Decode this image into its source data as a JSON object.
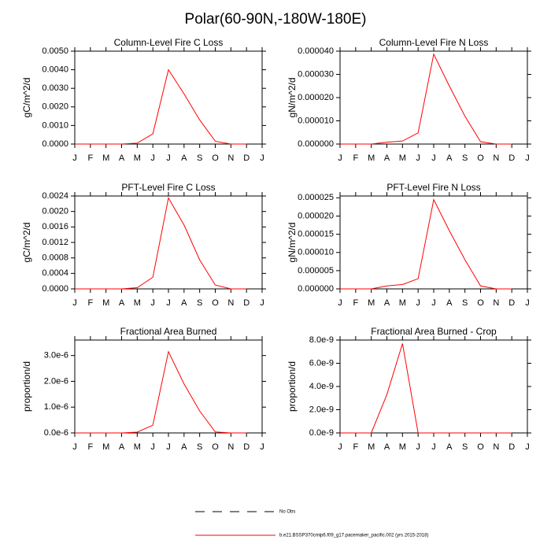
{
  "title": "Polar(60-90N,-180W-180E)",
  "legend": [
    {
      "name": "No Obs",
      "color": "#000000",
      "dash": "12 10"
    },
    {
      "name": "b.e21.BSSP370cmip6.f09_g17.pacemaker_pacific.002 (yrs 2015-2018)",
      "color": "#ff0000",
      "dash": "none"
    }
  ],
  "chart_data": [
    {
      "type": "line",
      "title": "Column-Level Fire C Loss",
      "y_label": "gC/m^2/d",
      "color": "#ff0000",
      "categories": [
        "J",
        "F",
        "M",
        "A",
        "M",
        "J",
        "J",
        "A",
        "S",
        "O",
        "N",
        "D",
        "J"
      ],
      "values": [
        0,
        0,
        0,
        0,
        5e-05,
        0.00055,
        0.004,
        0.0027,
        0.0013,
        0.00015,
        0,
        0,
        null
      ],
      "ylim": [
        0,
        0.005
      ],
      "yticks": [
        {
          "value": 0,
          "label": "0.0000"
        },
        {
          "value": 0.001,
          "label": "0.0010"
        },
        {
          "value": 0.002,
          "label": "0.0020"
        },
        {
          "value": 0.003,
          "label": "0.0030"
        },
        {
          "value": 0.004,
          "label": "0.0040"
        },
        {
          "value": 0.005,
          "label": "0.0050"
        }
      ]
    },
    {
      "type": "line",
      "title": "Column-Level Fire N Loss",
      "y_label": "gN/m^2/d",
      "color": "#ff0000",
      "categories": [
        "J",
        "F",
        "M",
        "A",
        "M",
        "J",
        "J",
        "A",
        "S",
        "O",
        "N",
        "D",
        "J"
      ],
      "values": [
        0,
        0,
        0,
        8e-07,
        1.3e-06,
        4.8e-06,
        3.87e-05,
        2.5e-05,
        1.2e-05,
        1e-06,
        0,
        0,
        null
      ],
      "ylim": [
        0,
        4e-05
      ],
      "yticks": [
        {
          "value": 0,
          "label": "0.000000"
        },
        {
          "value": 1e-05,
          "label": "0.000010"
        },
        {
          "value": 2e-05,
          "label": "0.000020"
        },
        {
          "value": 3e-05,
          "label": "0.000030"
        },
        {
          "value": 4e-05,
          "label": "0.000040"
        }
      ]
    },
    {
      "type": "line",
      "title": "PFT-Level Fire C Loss",
      "y_label": "gC/m^2/d",
      "color": "#ff0000",
      "categories": [
        "J",
        "F",
        "M",
        "A",
        "M",
        "J",
        "J",
        "A",
        "S",
        "O",
        "N",
        "D",
        "J"
      ],
      "values": [
        0,
        0,
        0,
        0,
        3e-05,
        0.0003,
        0.00235,
        0.00165,
        0.00075,
        0.0001,
        0,
        0,
        null
      ],
      "ylim": [
        0,
        0.0024
      ],
      "yticks": [
        {
          "value": 0,
          "label": "0.0000"
        },
        {
          "value": 0.0004,
          "label": "0.0004"
        },
        {
          "value": 0.0008,
          "label": "0.0008"
        },
        {
          "value": 0.0012,
          "label": "0.0012"
        },
        {
          "value": 0.0016,
          "label": "0.0016"
        },
        {
          "value": 0.002,
          "label": "0.0020"
        },
        {
          "value": 0.0024,
          "label": "0.0024"
        }
      ]
    },
    {
      "type": "line",
      "title": "PFT-Level Fire N Loss",
      "y_label": "gN/m^2/d",
      "color": "#ff0000",
      "categories": [
        "J",
        "F",
        "M",
        "A",
        "M",
        "J",
        "J",
        "A",
        "S",
        "O",
        "N",
        "D",
        "J"
      ],
      "values": [
        0,
        0,
        0,
        8e-07,
        1.2e-06,
        2.8e-06,
        2.45e-05,
        1.6e-05,
        8e-06,
        8e-07,
        0,
        0,
        null
      ],
      "ylim": [
        0,
        2.55e-05
      ],
      "yticks": [
        {
          "value": 0,
          "label": "0.000000"
        },
        {
          "value": 5e-06,
          "label": "0.000005"
        },
        {
          "value": 1e-05,
          "label": "0.000010"
        },
        {
          "value": 1.5e-05,
          "label": "0.000015"
        },
        {
          "value": 2e-05,
          "label": "0.000020"
        },
        {
          "value": 2.5e-05,
          "label": "0.000025"
        }
      ]
    },
    {
      "type": "line",
      "title": "Fractional Area Burned",
      "y_label": "proportion/d",
      "color": "#ff0000",
      "categories": [
        "J",
        "F",
        "M",
        "A",
        "M",
        "J",
        "J",
        "A",
        "S",
        "O",
        "N",
        "D",
        "J"
      ],
      "values": [
        0,
        0,
        0,
        0,
        3e-08,
        3e-07,
        3.15e-06,
        1.9e-06,
        8.5e-07,
        4e-08,
        0,
        0,
        null
      ],
      "ylim": [
        0,
        3.6e-06
      ],
      "yticks": [
        {
          "value": 0,
          "label": "0.0e-6"
        },
        {
          "value": 1e-06,
          "label": "1.0e-6"
        },
        {
          "value": 2e-06,
          "label": "2.0e-6"
        },
        {
          "value": 3e-06,
          "label": "3.0e-6"
        }
      ]
    },
    {
      "type": "line",
      "title": "Fractional Area Burned - Crop",
      "y_label": "proportion/d",
      "color": "#ff0000",
      "categories": [
        "J",
        "F",
        "M",
        "A",
        "M",
        "J",
        "J",
        "A",
        "S",
        "O",
        "N",
        "D",
        "J"
      ],
      "values": [
        0,
        0,
        0,
        3.3e-09,
        7.7e-09,
        0,
        0,
        0,
        0,
        0,
        0,
        0,
        null
      ],
      "ylim": [
        0,
        8e-09
      ],
      "yticks": [
        {
          "value": 0,
          "label": "0.0e-9"
        },
        {
          "value": 2e-09,
          "label": "2.0e-9"
        },
        {
          "value": 4e-09,
          "label": "4.0e-9"
        },
        {
          "value": 6e-09,
          "label": "6.0e-9"
        },
        {
          "value": 8e-09,
          "label": "8.0e-9"
        }
      ]
    }
  ]
}
